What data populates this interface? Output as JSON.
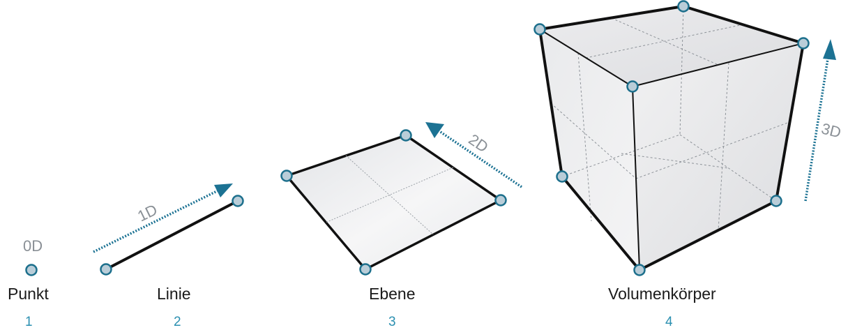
{
  "items": [
    {
      "name": "Punkt",
      "number": "1",
      "dimension": "0D"
    },
    {
      "name": "Linie",
      "number": "2",
      "dimension": "1D"
    },
    {
      "name": "Ebene",
      "number": "3",
      "dimension": "2D"
    },
    {
      "name": "Volumenkörper",
      "number": "4",
      "dimension": "3D"
    }
  ],
  "colors": {
    "vertex_fill": "#b9cdd8",
    "vertex_stroke": "#1c6f8c",
    "arrow": "#1c7293",
    "edge": "#111111",
    "label_number": "#2a8fb0",
    "dimension_text": "#8a9096"
  }
}
